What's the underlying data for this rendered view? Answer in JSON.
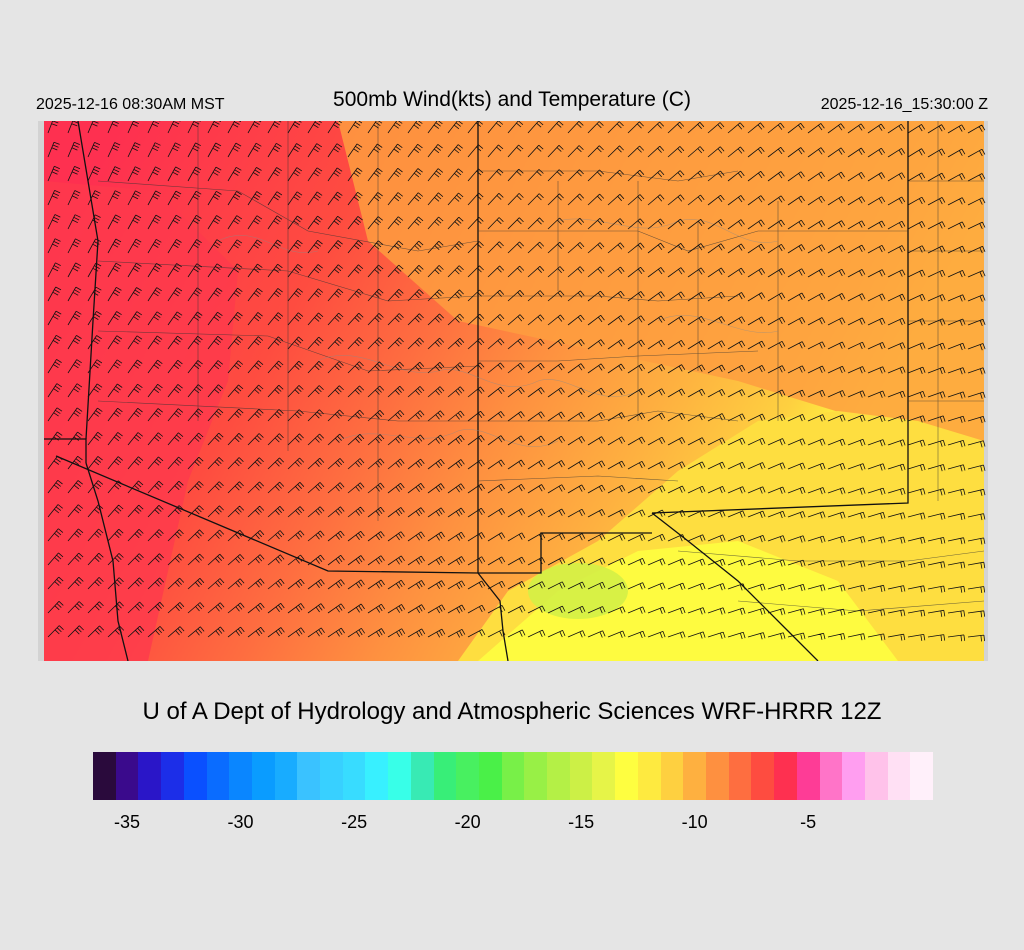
{
  "header": {
    "title": "500mb Wind(kts) and Temperature (C)",
    "local_time": "2025-12-16 08:30AM MST",
    "utc_time": "2025-12-16_15:30:00 Z"
  },
  "footer": {
    "credit": "U of A Dept of Hydrology and Atmospheric Sciences WRF-HRRR 12Z"
  },
  "map": {
    "field": "500mb temperature (C) with wind barbs (kts)",
    "region": "US Southwest",
    "background_colors": {
      "page": "#e5e5e5",
      "missing": "#d3d3d3"
    }
  },
  "colorbar": {
    "units": "C",
    "min": -36,
    "max": -1,
    "step": 1,
    "tick_values": [
      -35,
      -30,
      -25,
      -20,
      -15,
      -10,
      -5
    ],
    "tick_labels": [
      "-35",
      "-30",
      "-25",
      "-20",
      "-15",
      "-10",
      "-5"
    ],
    "colors": [
      "#2a0a3c",
      "#3a0a8c",
      "#2a16c8",
      "#1c2ee8",
      "#0a50ff",
      "#0a6cff",
      "#0a86ff",
      "#0a9cff",
      "#18acff",
      "#3ac2ff",
      "#38d0ff",
      "#38dcff",
      "#38f0ff",
      "#38ffe8",
      "#38eab4",
      "#38ee78",
      "#48f060",
      "#4af048",
      "#78f048",
      "#98f046",
      "#b4f046",
      "#ccf046",
      "#e6f448",
      "#fefe40",
      "#feea40",
      "#fed040",
      "#feb040",
      "#fe9040",
      "#fe6e40",
      "#fe4c40",
      "#fe3050",
      "#fe3c96",
      "#ff74c8",
      "#ff9ef0",
      "#ffc2ea",
      "#ffe0f4",
      "#fff0fa"
    ]
  }
}
